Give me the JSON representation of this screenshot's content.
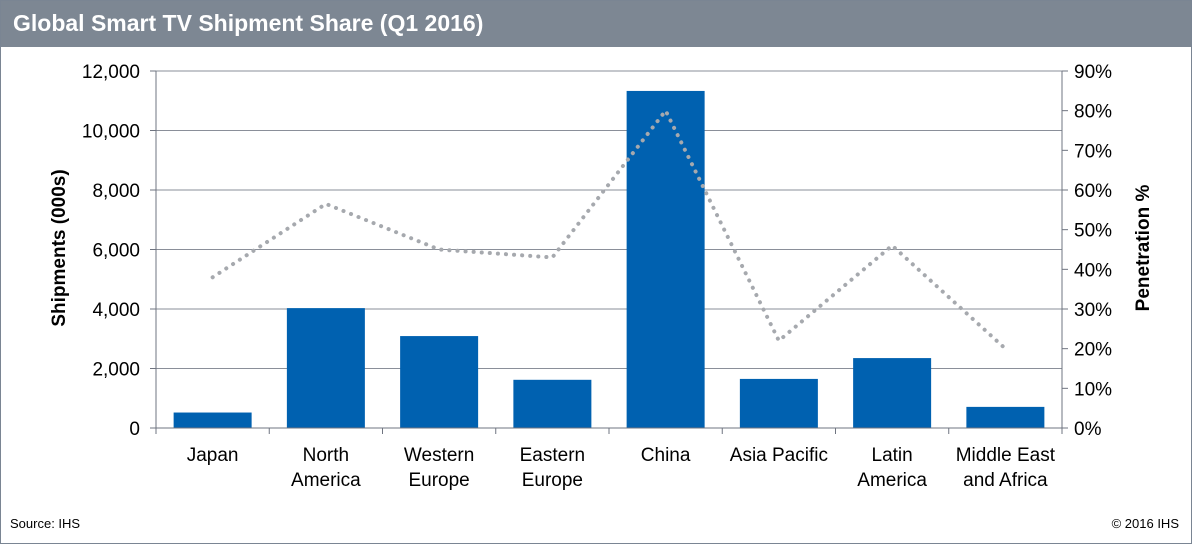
{
  "header": {
    "title": "Global Smart TV Shipment Share (Q1 2016)"
  },
  "footer": {
    "source": "Source: IHS",
    "copyright": "© 2016 IHS"
  },
  "colors": {
    "bar": "#0061b0",
    "line": "#a6a9ae",
    "grid": "#8a8f99",
    "header": "#7d8793"
  },
  "chart_data": {
    "type": "bar",
    "categories": [
      [
        "Japan"
      ],
      [
        "North",
        "America"
      ],
      [
        "Western",
        "Europe"
      ],
      [
        "Eastern",
        "Europe"
      ],
      [
        "China"
      ],
      [
        "Asia Pacific"
      ],
      [
        "Latin",
        "America"
      ],
      [
        "Middle East",
        "and Africa"
      ]
    ],
    "series": [
      {
        "type": "bar",
        "axis": "left",
        "values": [
          520,
          4030,
          3090,
          1620,
          11330,
          1650,
          2350,
          710
        ]
      },
      {
        "type": "line",
        "axis": "right",
        "style": "dotted",
        "values": [
          38,
          56.5,
          45,
          43,
          80,
          22,
          46,
          20
        ]
      }
    ],
    "ylabel": "Shipments (000s)",
    "y2label": "Penetration %",
    "ylim": [
      0,
      12000
    ],
    "y2lim": [
      0,
      90
    ],
    "yticks": [
      "0",
      "2,000",
      "4,000",
      "6,000",
      "8,000",
      "10,000",
      "12,000"
    ],
    "y2ticks": [
      "0%",
      "10%",
      "20%",
      "30%",
      "40%",
      "50%",
      "60%",
      "70%",
      "80%",
      "90%"
    ],
    "grid": true,
    "legend": "none"
  }
}
